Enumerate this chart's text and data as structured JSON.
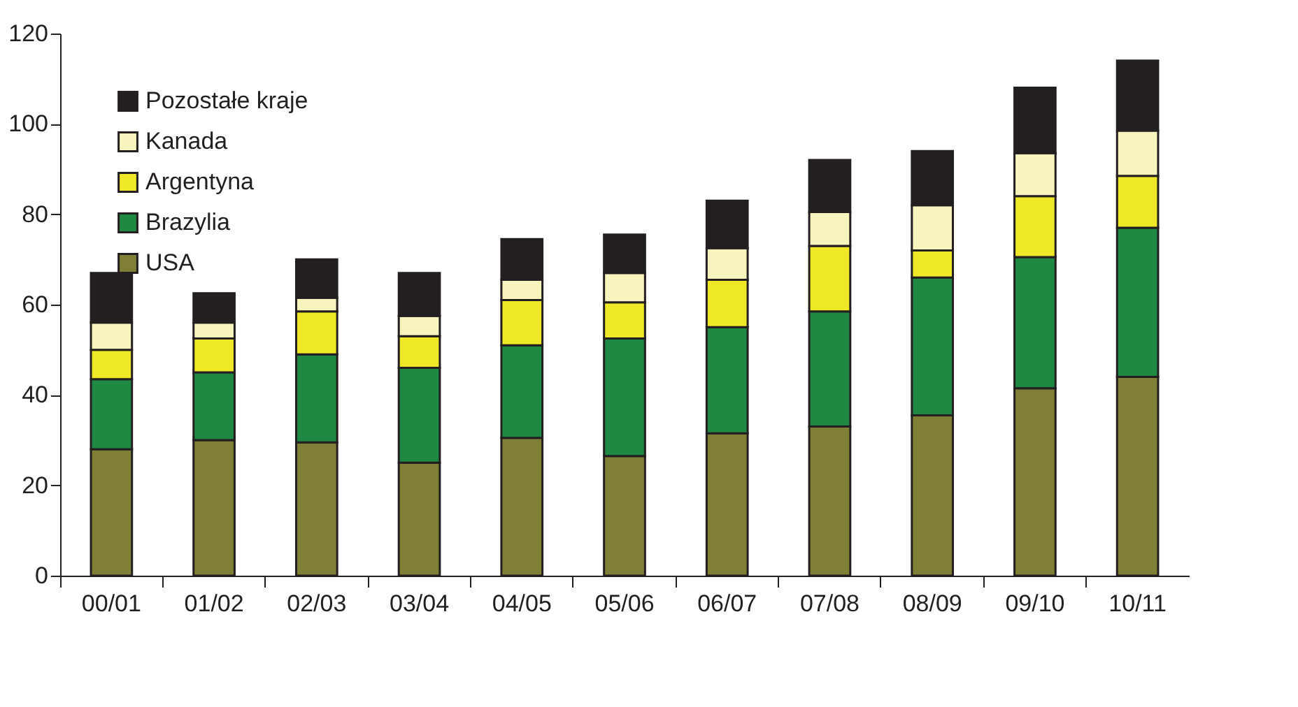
{
  "chart_data": {
    "type": "bar",
    "stacked": true,
    "categories": [
      "00/01",
      "01/02",
      "02/03",
      "03/04",
      "04/05",
      "05/06",
      "06/07",
      "07/08",
      "08/09",
      "09/10",
      "10/11"
    ],
    "series": [
      {
        "name": "USA",
        "color": "#7f7f35",
        "values": [
          28,
          30,
          29.5,
          25,
          30.5,
          26.5,
          31.5,
          33,
          35.5,
          41.5,
          44
        ]
      },
      {
        "name": "Brazylia",
        "color": "#1f8843",
        "values": [
          15.5,
          15,
          19.5,
          21,
          20.5,
          26,
          23.5,
          25.5,
          30.5,
          29,
          33
        ]
      },
      {
        "name": "Argentyna",
        "color": "#efe827",
        "values": [
          6.5,
          7.5,
          9.5,
          7,
          10,
          8,
          10.5,
          14.5,
          6,
          13.5,
          11.5
        ]
      },
      {
        "name": "Kanada",
        "color": "#f7f5bd",
        "values": [
          6,
          3.5,
          3,
          4.5,
          4.5,
          6.5,
          7,
          7.5,
          10,
          9.5,
          10
        ]
      },
      {
        "name": "Pozostałe kraje",
        "color": "#231f20",
        "values": [
          11,
          6.5,
          8.5,
          9.5,
          9,
          8.5,
          10.5,
          11.5,
          12,
          14.5,
          15.5
        ]
      }
    ],
    "ylim": [
      0,
      120
    ],
    "yticks": [
      0,
      20,
      40,
      60,
      80,
      100,
      120
    ],
    "grid": false,
    "legend": "top left"
  }
}
